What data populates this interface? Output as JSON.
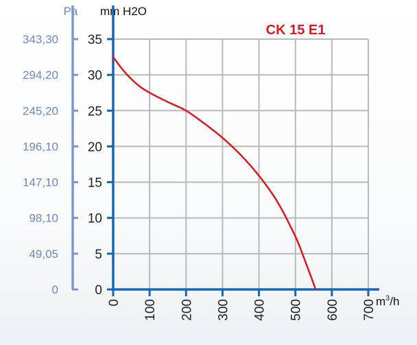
{
  "chart_data": {
    "type": "line",
    "title": "CK 15 E1",
    "y_unit_left": "Pa",
    "y_unit_right": "mm H2O",
    "x_unit": "m3/h",
    "x_ticks": [
      "0",
      "100",
      "200",
      "300",
      "400",
      "500",
      "600",
      "700"
    ],
    "y_ticks": [
      "0",
      "5",
      "10",
      "15",
      "20",
      "25",
      "30",
      "35"
    ],
    "pa_ticks": [
      "0",
      "49,05",
      "98,10",
      "147,10",
      "196,10",
      "245,20",
      "294,20",
      "343,30"
    ],
    "xlim": [
      0,
      700
    ],
    "ylim": [
      0,
      35
    ],
    "grid": true,
    "series": [
      {
        "color": "#e0161d",
        "x": [
          0,
          25,
          50,
          75,
          100,
          150,
          200,
          250,
          300,
          350,
          400,
          450,
          500,
          525,
          550,
          555
        ],
        "y": [
          32.5,
          30.8,
          29.4,
          28.3,
          27.5,
          26.2,
          25.0,
          23.2,
          21.2,
          18.8,
          15.9,
          12.3,
          7.4,
          4.2,
          0.8,
          0
        ]
      }
    ],
    "colors": {
      "axis": "#1466b8",
      "left_axis": "#7a97cf",
      "grid": "#b9b9b9",
      "title": "#d81b24",
      "pa_text": "#6b88c4",
      "tick_text": "#222222"
    }
  }
}
